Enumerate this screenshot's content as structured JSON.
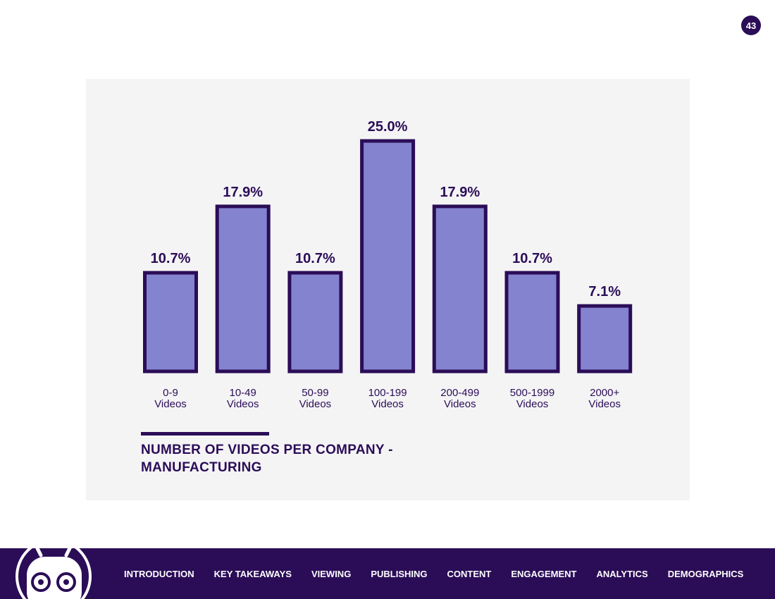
{
  "page": {
    "number": "43"
  },
  "chart_data": {
    "type": "bar",
    "title_line1": "NUMBER OF VIDEOS PER COMPANY -",
    "title_line2": "MANUFACTURING",
    "categories": [
      [
        "0-9",
        "Videos"
      ],
      [
        "10-49",
        "Videos"
      ],
      [
        "50-99",
        "Videos"
      ],
      [
        "100-199",
        "Videos"
      ],
      [
        "200-499",
        "Videos"
      ],
      [
        "500-1999",
        "Videos"
      ],
      [
        "2000+",
        "Videos"
      ]
    ],
    "values": [
      10.7,
      17.9,
      10.7,
      25.0,
      17.9,
      10.7,
      7.1
    ],
    "value_labels": [
      "10.7%",
      "17.9%",
      "10.7%",
      "25.0%",
      "17.9%",
      "10.7%",
      "7.1%"
    ],
    "ylim": [
      0,
      25
    ],
    "grid": false,
    "xlabel": "",
    "ylabel": ""
  },
  "colors": {
    "bar_fill": "#8483cf",
    "bar_stroke": "#2b0d57",
    "brand": "#2b0d57",
    "panel": "#f4f4f5"
  },
  "footer": {
    "mascot_icon": "robot-mascot-icon",
    "nav": [
      "INTRODUCTION",
      "KEY TAKEAWAYS",
      "VIEWING",
      "PUBLISHING",
      "CONTENT",
      "ENGAGEMENT",
      "ANALYTICS",
      "DEMOGRAPHICS"
    ]
  }
}
